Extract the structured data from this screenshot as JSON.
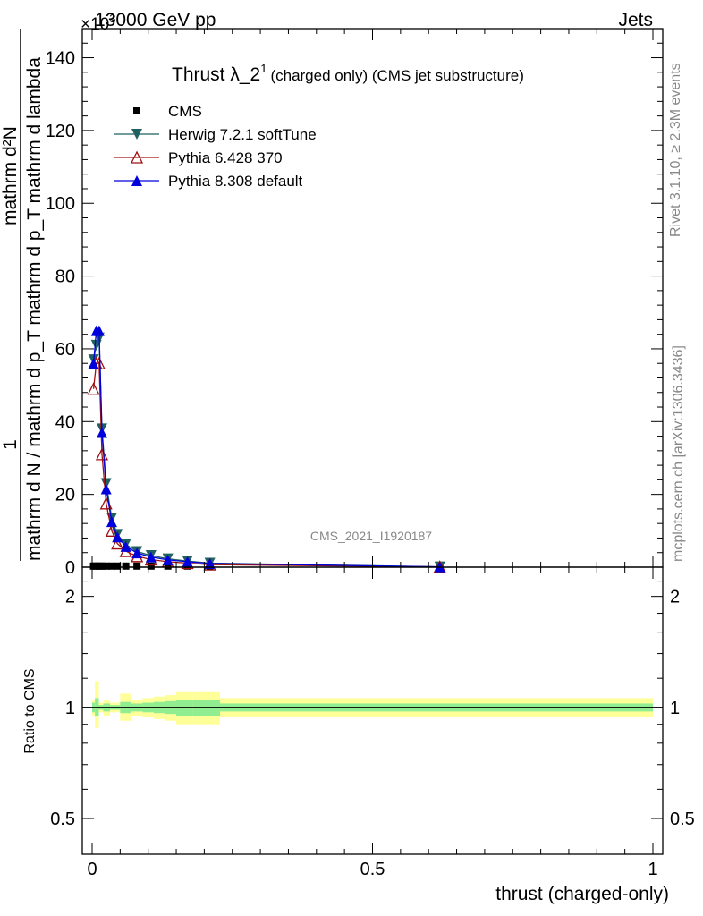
{
  "header": {
    "energy": "13000 GeV pp",
    "category": "Jets",
    "exponent": "×10",
    "exponent_power": "3"
  },
  "side_labels": {
    "rivet": "Rivet 3.1.10, ≥ 2.3M events",
    "mcplots": "mcplots.cern.ch [arXiv:1306.3436]"
  },
  "watermark": "CMS_2021_I1920187",
  "colors": {
    "cms": "#000000",
    "herwig": "#1f6060",
    "pythia6": "#a01010",
    "pythia8": "#0000dd",
    "band_outer": "#ffff99",
    "band_inner": "#90ee90"
  },
  "chart_data": [
    {
      "type": "line",
      "title": "Thrust λ_2",
      "title_sup": "1",
      "title_suffix": "(charged only) (CMS jet substructure)",
      "ylabel_top": "1",
      "ylabel_den": "mathrm d N / mathrm d p_T mathrm d p_T mathrm d lambda",
      "ylabel_num": "mathrm d²N",
      "ylim": [
        0,
        148
      ],
      "y_ticks": [
        "0",
        "20",
        "40",
        "60",
        "80",
        "100",
        "120",
        "140"
      ],
      "legend_position": "top-left",
      "x": [
        0.0025,
        0.0075,
        0.0125,
        0.0175,
        0.025,
        0.035,
        0.045,
        0.06,
        0.08,
        0.105,
        0.135,
        0.17,
        0.21,
        0.62
      ],
      "series": [
        {
          "name": "CMS",
          "marker": "square",
          "values": [
            0.3,
            0.3,
            0.3,
            0.3,
            0.3,
            0.3,
            0.3,
            0.3,
            0.3,
            0.3,
            0.3,
            0.3,
            0.3,
            0.3
          ]
        },
        {
          "name": "Herwig 7.2.1 softTune",
          "marker": "triangle-down",
          "values": [
            57,
            61,
            63,
            38,
            23,
            13.5,
            9,
            6.3,
            4.3,
            3.2,
            2.3,
            1.7,
            1.1,
            0.1
          ]
        },
        {
          "name": "Pythia 6.428 370",
          "marker": "triangle-up-open",
          "values": [
            49,
            56,
            56,
            31,
            17.5,
            10,
            6.5,
            4.4,
            3.0,
            2.1,
            1.5,
            1.1,
            0.7,
            0.1
          ]
        },
        {
          "name": "Pythia 8.308 default",
          "marker": "triangle-up",
          "values": [
            56,
            65,
            65,
            37,
            21.5,
            12.5,
            8.3,
            5.7,
            3.9,
            2.8,
            2.0,
            1.5,
            1.0,
            0.1
          ]
        }
      ]
    },
    {
      "type": "area",
      "ylabel": "Ratio to CMS",
      "xlabel": "thrust (charged-only)",
      "xlim": [
        0,
        1
      ],
      "ylim": [
        0.4,
        2.4
      ],
      "log_y": true,
      "x_ticks": [
        "0",
        "0.5",
        "1"
      ],
      "y_ticks": [
        "0.5",
        "1",
        "2"
      ],
      "bins": [
        {
          "lo": 0.0,
          "hi": 0.005,
          "outer": [
            0.95,
            1.05
          ],
          "inner": [
            0.97,
            1.03
          ]
        },
        {
          "lo": 0.005,
          "hi": 0.012,
          "outer": [
            0.88,
            1.18
          ],
          "inner": [
            0.95,
            1.06
          ]
        },
        {
          "lo": 0.012,
          "hi": 0.02,
          "outer": [
            0.97,
            1.03
          ],
          "inner": [
            0.985,
            1.015
          ]
        },
        {
          "lo": 0.02,
          "hi": 0.032,
          "outer": [
            0.95,
            1.05
          ],
          "inner": [
            0.975,
            1.025
          ]
        },
        {
          "lo": 0.032,
          "hi": 0.05,
          "outer": [
            0.97,
            1.03
          ],
          "inner": [
            0.985,
            1.015
          ]
        },
        {
          "lo": 0.05,
          "hi": 0.07,
          "outer": [
            0.92,
            1.09
          ],
          "inner": [
            0.965,
            1.035
          ]
        },
        {
          "lo": 0.07,
          "hi": 0.09,
          "outer": [
            0.95,
            1.05
          ],
          "inner": [
            0.975,
            1.025
          ]
        },
        {
          "lo": 0.09,
          "hi": 0.11,
          "outer": [
            0.94,
            1.06
          ],
          "inner": [
            0.97,
            1.03
          ]
        },
        {
          "lo": 0.11,
          "hi": 0.13,
          "outer": [
            0.93,
            1.07
          ],
          "inner": [
            0.965,
            1.035
          ]
        },
        {
          "lo": 0.13,
          "hi": 0.15,
          "outer": [
            0.92,
            1.08
          ],
          "inner": [
            0.96,
            1.04
          ]
        },
        {
          "lo": 0.15,
          "hi": 0.18,
          "outer": [
            0.9,
            1.1
          ],
          "inner": [
            0.95,
            1.05
          ]
        },
        {
          "lo": 0.18,
          "hi": 0.228,
          "outer": [
            0.9,
            1.1
          ],
          "inner": [
            0.95,
            1.05
          ]
        },
        {
          "lo": 0.228,
          "hi": 1.0,
          "outer": [
            0.94,
            1.06
          ],
          "inner": [
            0.975,
            1.025
          ]
        }
      ]
    }
  ]
}
